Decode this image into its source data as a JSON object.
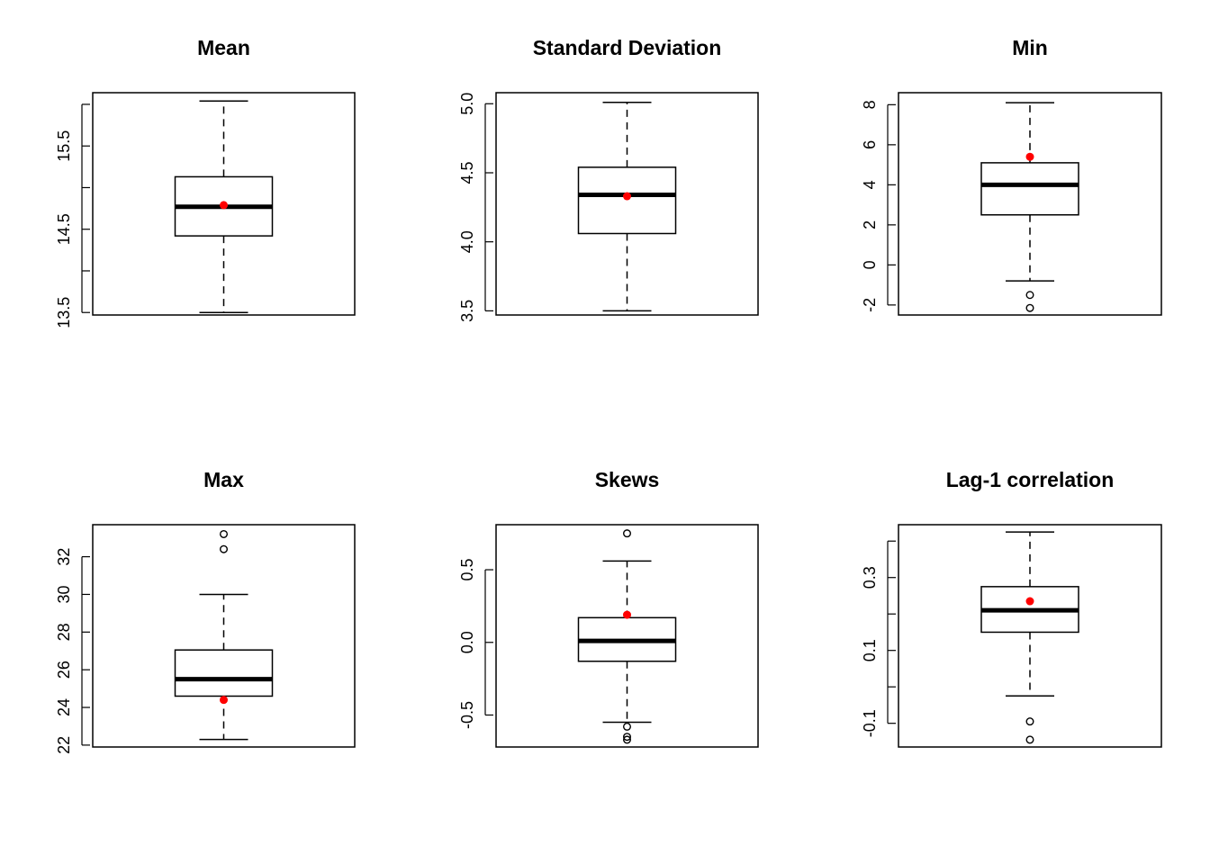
{
  "chart_data": [
    {
      "type": "box",
      "title": "Mean",
      "ylim": [
        13.47,
        16.14
      ],
      "yticks": [
        13.5,
        14,
        14.5,
        15,
        15.5,
        16
      ],
      "ytick_labels": [
        "13.5",
        "",
        "14.5",
        "",
        "15.5",
        ""
      ],
      "box": {
        "whisker_low": 13.5,
        "q1": 14.42,
        "median": 14.77,
        "q3": 15.13,
        "whisker_high": 16.04
      },
      "outliers": [],
      "observed": 14.79,
      "observed_color": "#ff0000"
    },
    {
      "type": "box",
      "title": "Standard Deviation",
      "ylim": [
        3.47,
        5.08
      ],
      "yticks": [
        3.5,
        4.0,
        4.5,
        5.0
      ],
      "ytick_labels": [
        "3.5",
        "4.0",
        "4.5",
        "5.0"
      ],
      "box": {
        "whisker_low": 3.5,
        "q1": 4.06,
        "median": 4.34,
        "q3": 4.54,
        "whisker_high": 5.01
      },
      "outliers": [],
      "observed": 4.33,
      "observed_color": "#ff0000"
    },
    {
      "type": "box",
      "title": "Min",
      "ylim": [
        -2.5,
        8.6
      ],
      "yticks": [
        -2,
        0,
        2,
        4,
        6,
        8
      ],
      "ytick_labels": [
        "-2",
        "0",
        "2",
        "4",
        "6",
        "8"
      ],
      "box": {
        "whisker_low": -0.8,
        "q1": 2.5,
        "median": 4.0,
        "q3": 5.1,
        "whisker_high": 8.1
      },
      "outliers": [
        -1.5,
        -2.15
      ],
      "observed": 5.4,
      "observed_color": "#ff0000"
    },
    {
      "type": "box",
      "title": "Max",
      "ylim": [
        21.9,
        33.7
      ],
      "yticks": [
        22,
        24,
        26,
        28,
        30,
        32
      ],
      "ytick_labels": [
        "22",
        "24",
        "26",
        "28",
        "30",
        "32"
      ],
      "box": {
        "whisker_low": 22.3,
        "q1": 24.6,
        "median": 25.5,
        "q3": 27.05,
        "whisker_high": 30.0
      },
      "outliers": [
        32.4,
        33.2
      ],
      "observed": 24.4,
      "observed_color": "#ff0000"
    },
    {
      "type": "box",
      "title": "Skews",
      "ylim": [
        -0.72,
        0.81
      ],
      "yticks": [
        -0.5,
        0,
        0.5
      ],
      "ytick_labels": [
        "-0.5",
        "0.0",
        "0.5"
      ],
      "box": {
        "whisker_low": -0.55,
        "q1": -0.13,
        "median": 0.01,
        "q3": 0.17,
        "whisker_high": 0.56
      },
      "outliers": [
        -0.58,
        -0.65,
        -0.67,
        0.75
      ],
      "observed": 0.19,
      "observed_color": "#ff0000"
    },
    {
      "type": "box",
      "title": "Lag-1 correlation",
      "ylim": [
        -0.165,
        0.445
      ],
      "yticks": [
        -0.1,
        0,
        0.1,
        0.2,
        0.3,
        0.4
      ],
      "ytick_labels": [
        "-0.1",
        "",
        "0.1",
        "",
        "0.3",
        ""
      ],
      "box": {
        "whisker_low": -0.025,
        "q1": 0.15,
        "median": 0.21,
        "q3": 0.275,
        "whisker_high": 0.425
      },
      "outliers": [
        -0.095,
        -0.145
      ],
      "observed": 0.235,
      "observed_color": "#ff0000"
    }
  ]
}
